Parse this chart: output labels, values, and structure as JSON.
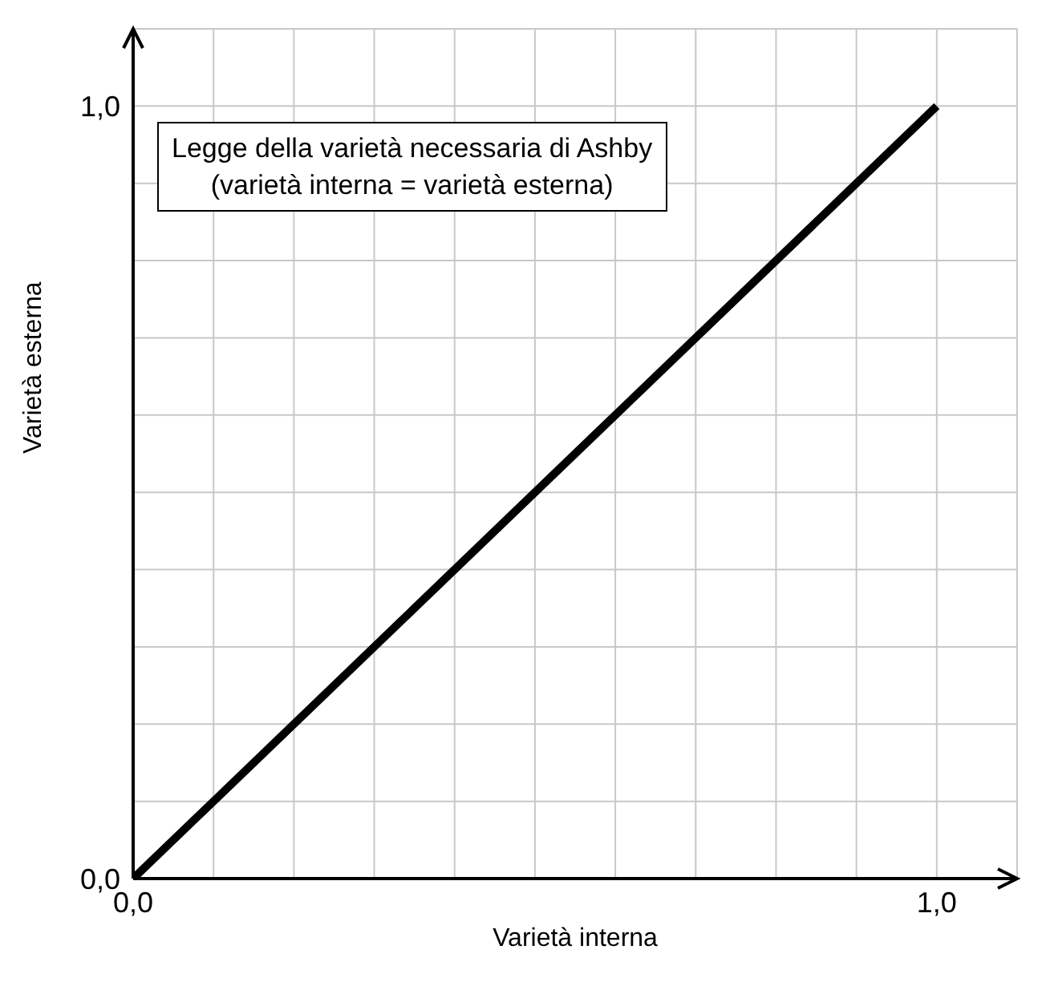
{
  "chart_data": {
    "type": "line",
    "xlabel": "Varietà interna",
    "ylabel": "Varietà esterna",
    "annotations": [
      "Legge della varietà necessaria di Ashby",
      "(varietà interna = varietà esterna)"
    ],
    "x": [
      0,
      1
    ],
    "series": [
      {
        "color": "#000000",
        "values": [
          0,
          1
        ]
      }
    ],
    "xlim": [
      0,
      1.1
    ],
    "ylim": [
      0,
      1.1
    ],
    "xticks": [
      {
        "value": 0,
        "label": "0,0"
      },
      {
        "value": 0.1,
        "label": null
      },
      {
        "value": 0.2,
        "label": null
      },
      {
        "value": 0.3,
        "label": null
      },
      {
        "value": 0.4,
        "label": null
      },
      {
        "value": 0.5,
        "label": null
      },
      {
        "value": 0.6,
        "label": null
      },
      {
        "value": 0.7,
        "label": null
      },
      {
        "value": 0.8,
        "label": null
      },
      {
        "value": 0.9,
        "label": null
      },
      {
        "value": 1,
        "label": "1,0"
      }
    ],
    "yticks": [
      {
        "value": 0,
        "label": "0,0"
      },
      {
        "value": 0.1,
        "label": null
      },
      {
        "value": 0.2,
        "label": null
      },
      {
        "value": 0.3,
        "label": null
      },
      {
        "value": 0.4,
        "label": null
      },
      {
        "value": 0.5,
        "label": null
      },
      {
        "value": 0.6,
        "label": null
      },
      {
        "value": 0.7,
        "label": null
      },
      {
        "value": 0.8,
        "label": null
      },
      {
        "value": 0.9,
        "label": null
      },
      {
        "value": 1,
        "label": "1,0"
      }
    ],
    "grid": true,
    "marker": "none",
    "line_style": "solid",
    "legend": false
  }
}
